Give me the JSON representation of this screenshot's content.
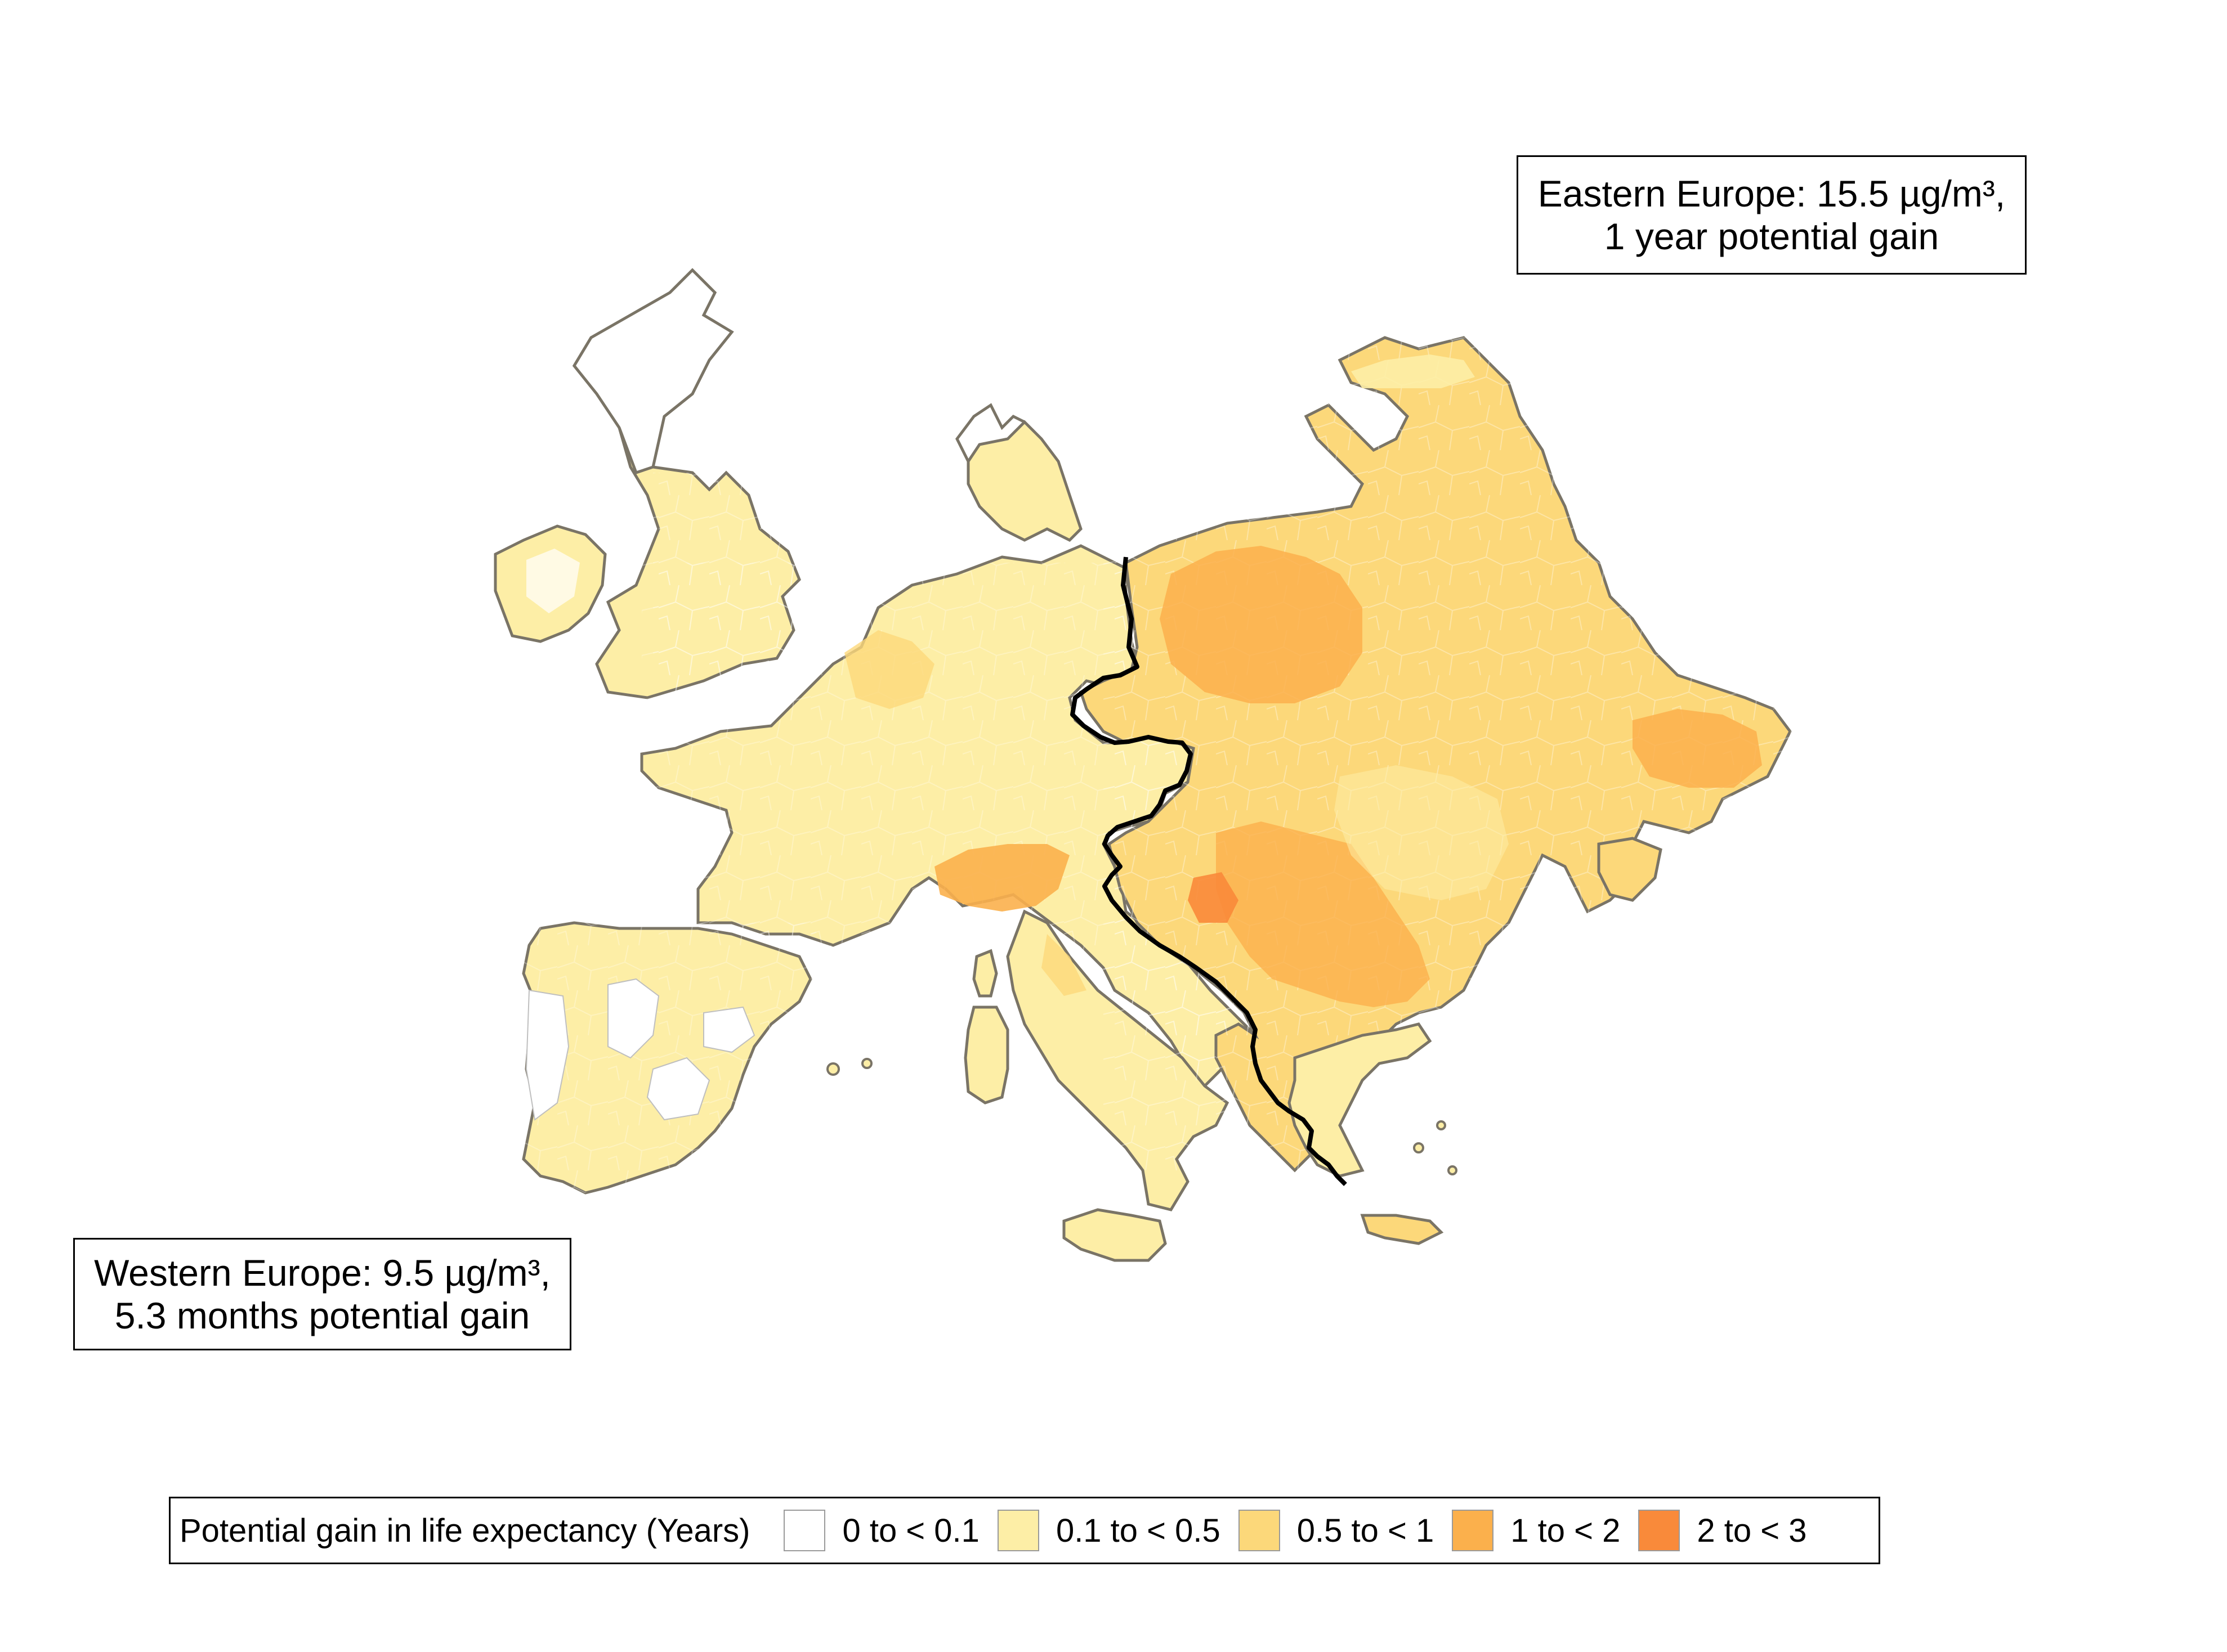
{
  "callouts": {
    "east": {
      "line1": "Eastern Europe: 15.5 µg/m³,",
      "line2": "1 year potential gain"
    },
    "west": {
      "line1": "Western Europe: 9.5 µg/m³,",
      "line2": "5.3 months potential gain"
    }
  },
  "legend": {
    "title": "Potential gain in life expectancy (Years)",
    "items": [
      {
        "label": "0 to < 0.1",
        "color": "#ffffff"
      },
      {
        "label": "0.1 to < 0.5",
        "color": "#fdeea6"
      },
      {
        "label": "0.5 to < 1",
        "color": "#fcd87a"
      },
      {
        "label": "1 to < 2",
        "color": "#fbb04c"
      },
      {
        "label": "2 to < 3",
        "color": "#f98a3a"
      }
    ]
  },
  "map": {
    "border_color": "#7a7466",
    "divider_color": "#000000"
  }
}
